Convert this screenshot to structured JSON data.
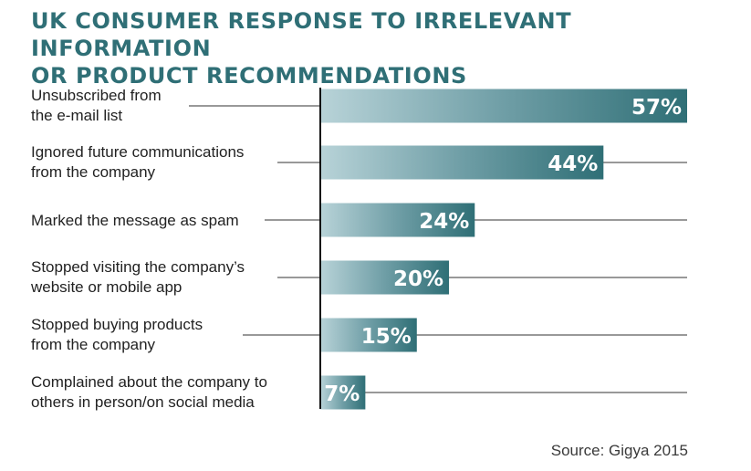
{
  "chart_data": {
    "type": "bar",
    "orientation": "horizontal",
    "title": "UK CONSUMER RESPONSE TO IRRELEVANT INFORMATION OR PRODUCT RECOMMENDATIONS",
    "title_lines": [
      "UK CONSUMER RESPONSE TO IRRELEVANT INFORMATION",
      "OR PRODUCT RECOMMENDATIONS"
    ],
    "categories": [
      [
        "Unsubscribed from",
        "the e-mail list"
      ],
      [
        "Ignored future communications",
        "from the company"
      ],
      [
        "Marked the message as spam"
      ],
      [
        "Stopped visiting the company’s",
        "website or mobile app"
      ],
      [
        "Stopped buying products",
        "from the company"
      ],
      [
        "Complained about the company to",
        "others in person/on social media"
      ]
    ],
    "values": [
      57,
      44,
      24,
      20,
      15,
      7
    ],
    "value_labels": [
      "57%",
      "44%",
      "24%",
      "20%",
      "15%",
      "7%"
    ],
    "unit": "%",
    "xlim": [
      0,
      57
    ],
    "legend": "none",
    "grid": false,
    "colors": {
      "title": "#2f6f76",
      "bar_dark": "#2f6f76",
      "bar_light": "#b8d3d8",
      "label_text": "#222222",
      "value_text": "#ffffff",
      "guide_line": "#333333",
      "axis": "#111111",
      "source_text": "#3a3a3a"
    },
    "source": "Source: Gigya 2015"
  }
}
